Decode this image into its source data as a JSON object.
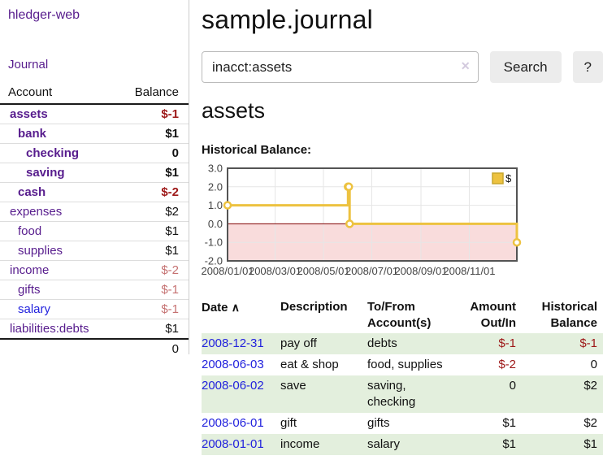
{
  "app": {
    "brand": "hledger-web"
  },
  "sidebar": {
    "journal_link": "Journal",
    "accounts_table": {
      "headers": {
        "account": "Account",
        "balance": "Balance"
      },
      "rows": [
        {
          "account": "assets",
          "balance": "$-1",
          "indent": 1,
          "bold": true,
          "tone": "neg-strong",
          "link_style": "purple"
        },
        {
          "account": "bank",
          "balance": "$1",
          "indent": 2,
          "bold": true,
          "tone": "",
          "link_style": "purple"
        },
        {
          "account": "checking",
          "balance": "0",
          "indent": 3,
          "bold": true,
          "tone": "",
          "link_style": "purple"
        },
        {
          "account": "saving",
          "balance": "$1",
          "indent": 3,
          "bold": true,
          "tone": "",
          "link_style": "purple"
        },
        {
          "account": "cash",
          "balance": "$-2",
          "indent": 2,
          "bold": true,
          "tone": "neg-strong",
          "link_style": "purple"
        },
        {
          "account": "expenses",
          "balance": "$2",
          "indent": 1,
          "bold": false,
          "tone": "",
          "link_style": "purple"
        },
        {
          "account": "food",
          "balance": "$1",
          "indent": 2,
          "bold": false,
          "tone": "",
          "link_style": "purple"
        },
        {
          "account": "supplies",
          "balance": "$1",
          "indent": 2,
          "bold": false,
          "tone": "",
          "link_style": "purple"
        },
        {
          "account": "income",
          "balance": "$-2",
          "indent": 1,
          "bold": false,
          "tone": "neg-soft",
          "link_style": "purple"
        },
        {
          "account": "gifts",
          "balance": "$-1",
          "indent": 2,
          "bold": false,
          "tone": "neg-soft",
          "link_style": "purple"
        },
        {
          "account": "salary",
          "balance": "$-1",
          "indent": 2,
          "bold": false,
          "tone": "neg-soft",
          "link_style": "blue"
        },
        {
          "account": "liabilities:debts",
          "balance": "$1",
          "indent": 1,
          "bold": false,
          "tone": "",
          "link_style": "purple"
        }
      ],
      "total": "0"
    }
  },
  "main": {
    "title": "sample.journal",
    "search": {
      "value": "inacct:assets",
      "clear_icon": "✕",
      "search_button": "Search",
      "help_button": "?"
    },
    "section_title": "assets",
    "chart_title": "Historical Balance:"
  },
  "chart_data": {
    "type": "line",
    "step": true,
    "title": "Historical Balance",
    "xlabel": "",
    "ylabel": "",
    "x_ticks": [
      "2008/01/01",
      "2008/03/01",
      "2008/05/01",
      "2008/07/01",
      "2008/09/01",
      "2008/11/01"
    ],
    "y_ticks": [
      "3.0",
      "2.0",
      "1.0",
      "0.0",
      "-1.0",
      "-2.0"
    ],
    "xlim": [
      "2008-01-01",
      "2008-12-31"
    ],
    "ylim": [
      -2,
      3
    ],
    "series": [
      {
        "name": "$",
        "color": "#edc240",
        "points": [
          [
            "2008-01-01",
            1
          ],
          [
            "2008-06-01",
            2
          ],
          [
            "2008-06-02",
            2
          ],
          [
            "2008-06-03",
            0
          ],
          [
            "2008-12-31",
            -1
          ]
        ]
      }
    ],
    "legend": {
      "position": "top-right",
      "label": "$"
    },
    "grid": true,
    "negative_fill": "#f9dcdc",
    "zero_line": "#800000",
    "border_color": "#545454",
    "gridline_color": "#e6e6e6"
  },
  "register": {
    "headers": [
      "Date",
      "Description",
      "To/From Account(s)",
      "Amount Out/In",
      "Historical Balance"
    ],
    "sort_indicator": "∧",
    "rows": [
      {
        "date": "2008-12-31",
        "description": "pay off",
        "accounts": "debts",
        "amount": "$-1",
        "balance": "$-1"
      },
      {
        "date": "2008-06-03",
        "description": "eat & shop",
        "accounts": "food, supplies",
        "amount": "$-2",
        "balance": "0"
      },
      {
        "date": "2008-06-02",
        "description": "save",
        "accounts": "saving,\nchecking",
        "amount": "0",
        "balance": "$2"
      },
      {
        "date": "2008-06-01",
        "description": "gift",
        "accounts": "gifts",
        "amount": "$1",
        "balance": "$2"
      },
      {
        "date": "2008-01-01",
        "description": "income",
        "accounts": "salary",
        "amount": "$1",
        "balance": "$1"
      }
    ]
  },
  "colors": {
    "link_purple": "#571c8d",
    "link_blue": "#2222dd",
    "negative_strong": "#9d1717",
    "negative_soft": "#c57171",
    "row_green": "#e3efdd",
    "chart_line": "#edc240"
  }
}
